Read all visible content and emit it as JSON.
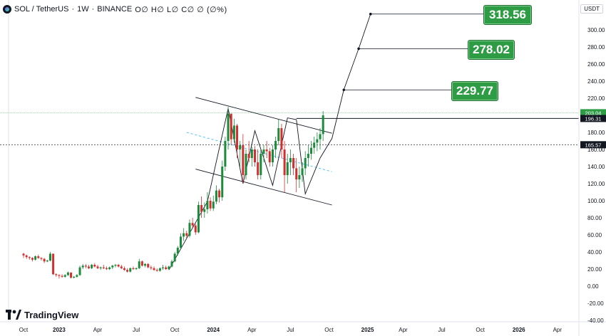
{
  "header": {
    "symbol": "SOL / TetherUS",
    "interval": "1W",
    "exchange": "BINANCE",
    "ohlc": "O∅ H∅ L∅ C∅ ∅ (∅%)"
  },
  "currency_label": "USDT",
  "logo_text": "TradingView",
  "targets": [
    {
      "label": "318.56",
      "value": 318.56
    },
    {
      "label": "278.02",
      "value": 278.02
    },
    {
      "label": "229.77",
      "value": 229.77
    }
  ],
  "price_tags": [
    {
      "label": "203.04",
      "value": 203.04,
      "color": "#2e9b45"
    },
    {
      "label": "196.31",
      "value": 196.31,
      "color": "#131722"
    },
    {
      "label": "165.57",
      "value": 165.57,
      "color": "#131722"
    }
  ],
  "chart_data": {
    "type": "candlestick",
    "interval": "1W",
    "y_axis": {
      "ticks": [
        -40,
        -20,
        0,
        20,
        40,
        60,
        80,
        100,
        120,
        140,
        160,
        180,
        200,
        220,
        240,
        260,
        280,
        300
      ],
      "tick_labels": [
        "-40.00",
        "-20.00",
        "0.00",
        "20.00",
        "40.00",
        "60.00",
        "80.00",
        "100.00",
        "120.00",
        "140.00",
        "160.00",
        "180.00",
        "200.00",
        "220.00",
        "240.00",
        "260.00",
        "280.00",
        "300.00"
      ],
      "range": [
        -45,
        325
      ]
    },
    "x_axis": {
      "tick_labels": [
        "Oct",
        "2023",
        "Apr",
        "Jul",
        "Oct",
        "2024",
        "Apr",
        "Jul",
        "Oct",
        "2025",
        "Apr",
        "Jul",
        "Oct",
        "2026",
        "Apr"
      ],
      "tick_pos": [
        0,
        12,
        25,
        38,
        51,
        64,
        77,
        90,
        103,
        116,
        128,
        141,
        154,
        167,
        180
      ],
      "bold": [
        "2023",
        "2024",
        "2025",
        "2026"
      ],
      "range": [
        -7,
        187
      ]
    },
    "ohlc": [
      [
        38,
        39,
        33,
        36
      ],
      [
        36,
        37,
        32,
        34
      ],
      [
        34,
        35,
        31,
        33
      ],
      [
        33,
        34,
        29,
        31
      ],
      [
        31,
        36,
        30,
        35
      ],
      [
        35,
        37,
        32,
        33
      ],
      [
        33,
        34,
        30,
        32
      ],
      [
        32,
        33,
        27,
        29
      ],
      [
        29,
        31,
        28,
        30
      ],
      [
        30,
        40,
        29,
        38
      ],
      [
        38,
        38,
        13,
        14
      ],
      [
        14,
        15,
        11,
        13
      ],
      [
        13,
        14,
        9,
        12
      ],
      [
        12,
        14,
        10,
        11
      ],
      [
        11,
        14,
        10,
        13
      ],
      [
        13,
        17,
        12,
        16
      ],
      [
        16,
        15,
        9,
        10
      ],
      [
        10,
        12,
        9,
        11
      ],
      [
        11,
        14,
        10,
        13
      ],
      [
        13,
        24,
        12,
        22
      ],
      [
        22,
        26,
        20,
        24
      ],
      [
        24,
        26,
        21,
        23
      ],
      [
        23,
        25,
        20,
        21
      ],
      [
        21,
        26,
        20,
        25
      ],
      [
        25,
        27,
        22,
        23
      ],
      [
        23,
        25,
        20,
        21
      ],
      [
        21,
        23,
        19,
        22
      ],
      [
        22,
        25,
        20,
        21
      ],
      [
        21,
        23,
        19,
        20
      ],
      [
        20,
        23,
        19,
        22
      ],
      [
        22,
        25,
        20,
        24
      ],
      [
        24,
        26,
        22,
        25
      ],
      [
        25,
        26,
        22,
        23
      ],
      [
        23,
        25,
        20,
        21
      ],
      [
        21,
        23,
        18,
        19
      ],
      [
        19,
        21,
        16,
        17
      ],
      [
        17,
        22,
        16,
        21
      ],
      [
        21,
        23,
        19,
        20
      ],
      [
        20,
        22,
        19,
        21
      ],
      [
        21,
        32,
        20,
        29
      ],
      [
        29,
        30,
        23,
        24
      ],
      [
        24,
        27,
        22,
        26
      ],
      [
        26,
        27,
        21,
        22
      ],
      [
        22,
        24,
        19,
        21
      ],
      [
        21,
        23,
        18,
        19
      ],
      [
        19,
        21,
        17,
        18
      ],
      [
        18,
        22,
        17,
        21
      ],
      [
        21,
        25,
        19,
        22
      ],
      [
        22,
        24,
        19,
        20
      ],
      [
        20,
        24,
        19,
        23
      ],
      [
        23,
        31,
        22,
        29
      ],
      [
        29,
        40,
        28,
        38
      ],
      [
        38,
        47,
        36,
        45
      ],
      [
        45,
        62,
        43,
        58
      ],
      [
        58,
        68,
        53,
        62
      ],
      [
        62,
        65,
        56,
        59
      ],
      [
        59,
        78,
        57,
        74
      ],
      [
        74,
        80,
        68,
        71
      ],
      [
        71,
        73,
        60,
        63
      ],
      [
        63,
        99,
        62,
        95
      ],
      [
        95,
        105,
        80,
        87
      ],
      [
        87,
        98,
        80,
        90
      ],
      [
        90,
        110,
        85,
        100
      ],
      [
        100,
        104,
        88,
        91
      ],
      [
        91,
        106,
        88,
        99
      ],
      [
        99,
        118,
        96,
        112
      ],
      [
        112,
        114,
        98,
        104
      ],
      [
        104,
        147,
        100,
        140
      ],
      [
        140,
        175,
        135,
        170
      ],
      [
        170,
        210,
        160,
        202
      ],
      [
        202,
        200,
        165,
        172
      ],
      [
        172,
        196,
        168,
        188
      ],
      [
        188,
        190,
        150,
        160
      ],
      [
        160,
        170,
        140,
        165
      ],
      [
        165,
        178,
        120,
        130
      ],
      [
        130,
        160,
        125,
        155
      ],
      [
        155,
        170,
        145,
        150
      ],
      [
        150,
        163,
        140,
        160
      ],
      [
        160,
        164,
        140,
        145
      ],
      [
        145,
        160,
        125,
        130
      ],
      [
        130,
        160,
        125,
        155
      ],
      [
        155,
        165,
        145,
        160
      ],
      [
        160,
        170,
        150,
        158
      ],
      [
        158,
        162,
        140,
        145
      ],
      [
        145,
        165,
        140,
        160
      ],
      [
        160,
        175,
        150,
        170
      ],
      [
        170,
        195,
        165,
        185
      ],
      [
        185,
        190,
        150,
        160
      ],
      [
        160,
        170,
        110,
        130
      ],
      [
        130,
        155,
        120,
        145
      ],
      [
        145,
        160,
        130,
        150
      ],
      [
        150,
        155,
        130,
        138
      ],
      [
        138,
        150,
        110,
        125
      ],
      [
        125,
        140,
        115,
        130
      ],
      [
        130,
        145,
        122,
        138
      ],
      [
        138,
        158,
        130,
        150
      ],
      [
        150,
        165,
        140,
        155
      ],
      [
        155,
        170,
        148,
        162
      ],
      [
        162,
        175,
        155,
        168
      ],
      [
        168,
        180,
        158,
        172
      ],
      [
        172,
        185,
        160,
        178
      ],
      [
        178,
        205,
        170,
        200
      ]
    ],
    "lines": {
      "channel_upper": [
        [
          58,
          221
        ],
        [
          104,
          179
        ]
      ],
      "channel_lower": [
        [
          58,
          137
        ],
        [
          104,
          95
        ]
      ],
      "channel_mid": [
        [
          55,
          180
        ],
        [
          104,
          134
        ]
      ],
      "wedge_apex": [
        [
          93,
          172
        ],
        [
          104,
          160
        ]
      ],
      "target_path": [
        [
          49,
          19
        ],
        [
          62,
          99
        ],
        [
          69,
          208
        ],
        [
          74,
          120
        ],
        [
          78,
          182
        ],
        [
          84,
          118
        ],
        [
          89,
          197
        ],
        [
          92,
          195
        ],
        [
          95,
          108
        ],
        [
          100,
          150
        ],
        [
          104,
          173
        ],
        [
          108,
          230
        ],
        [
          113,
          278
        ],
        [
          117,
          318.56
        ]
      ],
      "horizontal_203": 203.04,
      "horizontal_165": 165.57
    }
  }
}
